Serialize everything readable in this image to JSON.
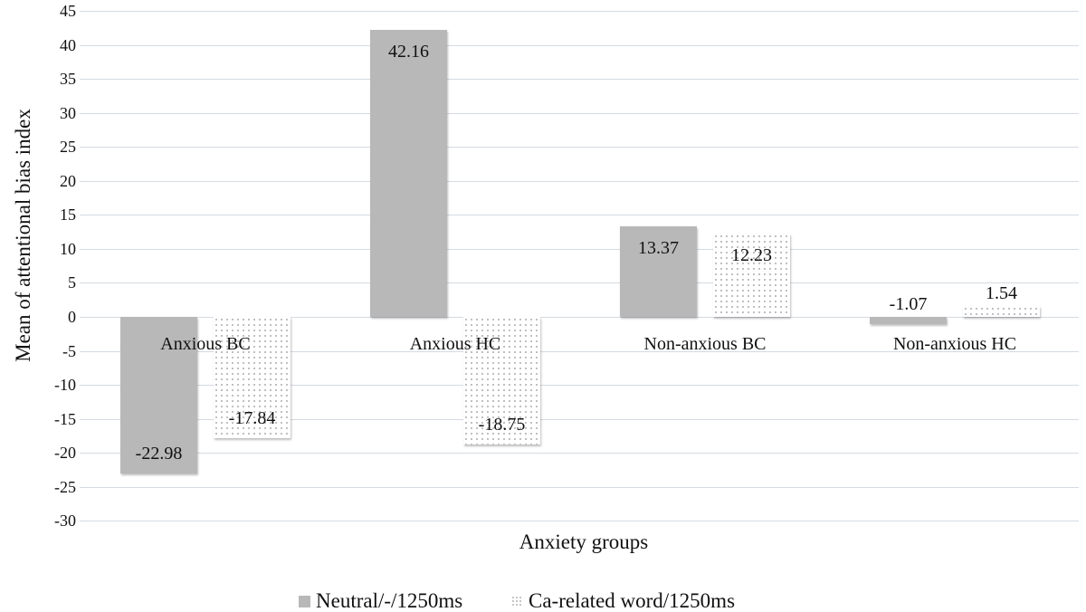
{
  "chart_data": {
    "type": "bar",
    "title": "",
    "xlabel": "Anxiety groups",
    "ylabel": "Mean of attentional bias index",
    "ylim": [
      -30,
      45
    ],
    "ytick_step": 5,
    "yticks": [
      "45",
      "40",
      "35",
      "30",
      "25",
      "20",
      "15",
      "10",
      "5",
      "0",
      "-5",
      "-10",
      "-15",
      "-20",
      "-25",
      "-30"
    ],
    "grid": true,
    "legend_position": "bottom",
    "categories": [
      "Anxious BC",
      "Anxious HC",
      "Non-anxious BC",
      "Non-anxious HC"
    ],
    "series": [
      {
        "name": "Neutral/-/1250ms",
        "color": "#b8b8b8",
        "pattern": "solid",
        "values": [
          -22.98,
          42.16,
          13.37,
          -1.07
        ],
        "labels": [
          "-22.98",
          "42.16",
          "13.37",
          "-1.07"
        ]
      },
      {
        "name": "Ca-related word/1250ms",
        "color": "#b0b0b0",
        "pattern": "dotted",
        "values": [
          -17.84,
          -18.75,
          12.23,
          1.54
        ],
        "labels": [
          "-17.84",
          "-18.75",
          "12.23",
          "1.54"
        ]
      }
    ]
  }
}
